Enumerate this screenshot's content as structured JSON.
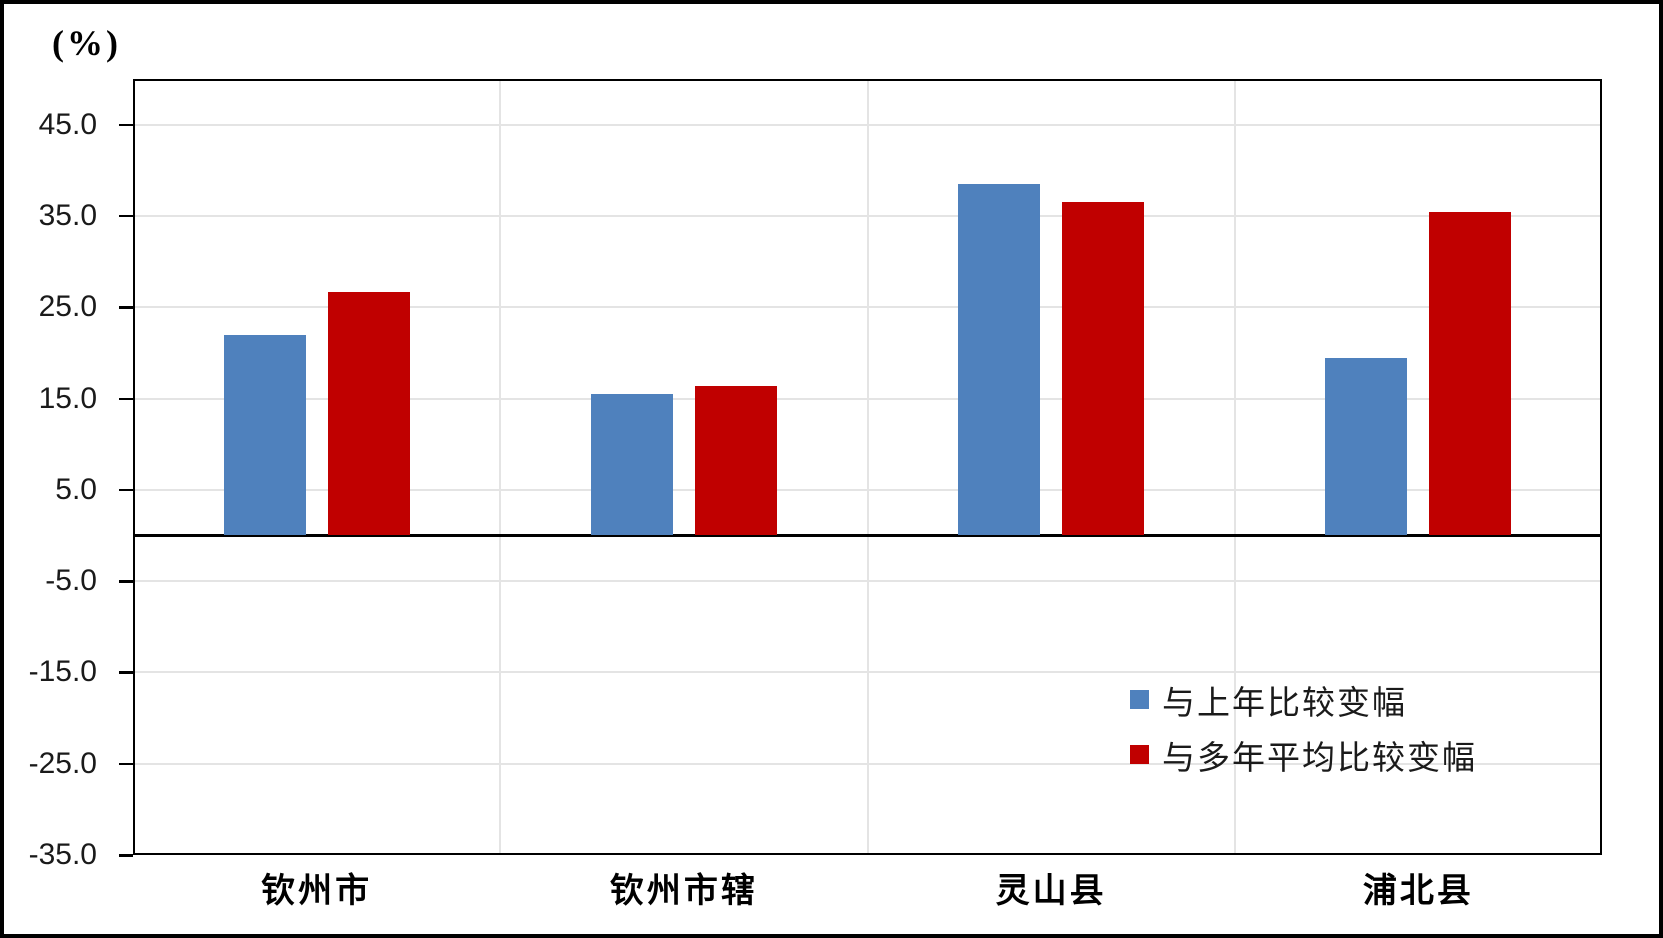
{
  "chart_data": {
    "type": "bar",
    "title": "",
    "unit_label": "(%)",
    "categories": [
      "钦州市",
      "钦州市辖",
      "灵山县",
      "浦北县"
    ],
    "series": [
      {
        "name": "与上年比较变幅",
        "color": "#4F81BD",
        "values": [
          22.0,
          15.5,
          38.5,
          19.4
        ]
      },
      {
        "name": "与多年平均比较变幅",
        "color": "#C00000",
        "values": [
          26.7,
          16.4,
          36.5,
          35.4
        ]
      }
    ],
    "ylabel": "(%)",
    "xlabel": "",
    "ylim": [
      -35,
      50
    ],
    "yticks": [
      45.0,
      35.0,
      25.0,
      15.0,
      5.0,
      -5.0,
      -15.0,
      -25.0,
      -35.0
    ],
    "ytick_labels": [
      "45.0",
      "35.0",
      "25.0",
      "15.0",
      "5.0",
      "-5.0",
      "-15.0",
      "-25.0",
      "-35.0"
    ],
    "grid": true,
    "legend_position": "inside-right-center"
  },
  "colors": {
    "background": "#FFFFFF",
    "frame": "#000000",
    "axis_line": "#000000",
    "gridline": "#E4E4E4",
    "tick_text": "#1a1a1a",
    "series_blue": "#4F81BD",
    "series_red": "#C00000"
  }
}
